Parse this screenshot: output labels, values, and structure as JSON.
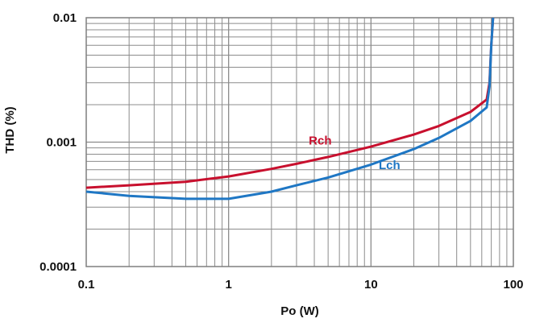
{
  "chart_data": {
    "type": "line",
    "title": "",
    "xlabel": "Po (W)",
    "ylabel": "THD (%)",
    "xscale": "log",
    "yscale": "log",
    "xlim": [
      0.1,
      100
    ],
    "ylim": [
      0.0001,
      0.01
    ],
    "x_ticks": [
      "0.1",
      "1",
      "10",
      "100"
    ],
    "y_ticks": [
      "0.0001",
      "0.001",
      "0.01"
    ],
    "grid": true,
    "legend": "inline labels near curves",
    "series": [
      {
        "name": "Rch",
        "color": "#c8102e",
        "points": [
          [
            0.1,
            0.00043
          ],
          [
            0.2,
            0.00045
          ],
          [
            0.5,
            0.00048
          ],
          [
            1,
            0.00053
          ],
          [
            2,
            0.00061
          ],
          [
            3,
            0.00067
          ],
          [
            5,
            0.00076
          ],
          [
            10,
            0.00092
          ],
          [
            20,
            0.00115
          ],
          [
            30,
            0.00135
          ],
          [
            50,
            0.00175
          ],
          [
            65,
            0.0022
          ],
          [
            68,
            0.003
          ],
          [
            70,
            0.006
          ],
          [
            72,
            0.01
          ]
        ]
      },
      {
        "name": "Lch",
        "color": "#1f77c4",
        "points": [
          [
            0.1,
            0.0004
          ],
          [
            0.2,
            0.00037
          ],
          [
            0.5,
            0.00035
          ],
          [
            1,
            0.00035
          ],
          [
            2,
            0.0004
          ],
          [
            3,
            0.00045
          ],
          [
            5,
            0.00052
          ],
          [
            10,
            0.00066
          ],
          [
            20,
            0.00088
          ],
          [
            30,
            0.00108
          ],
          [
            50,
            0.00148
          ],
          [
            65,
            0.0019
          ],
          [
            68,
            0.0028
          ],
          [
            70,
            0.006
          ],
          [
            72,
            0.01
          ]
        ]
      }
    ]
  }
}
